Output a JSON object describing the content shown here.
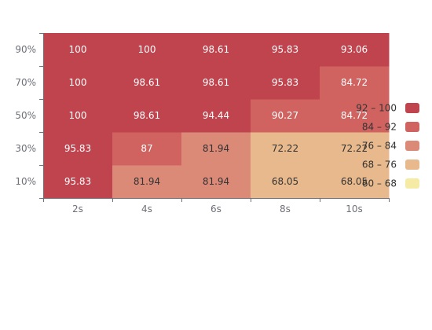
{
  "chart_data": {
    "type": "heatmap",
    "title": "",
    "xlabel": "",
    "ylabel": "",
    "x_categories": [
      "2s",
      "4s",
      "6s",
      "8s",
      "10s"
    ],
    "y_categories": [
      "10%",
      "30%",
      "50%",
      "70%",
      "90%"
    ],
    "values": [
      [
        95.83,
        81.94,
        81.94,
        68.05,
        68.05
      ],
      [
        95.83,
        87,
        81.94,
        72.22,
        72.22
      ],
      [
        100,
        98.61,
        94.44,
        90.27,
        84.72
      ],
      [
        100,
        98.61,
        98.61,
        95.83,
        84.72
      ],
      [
        100,
        100,
        98.61,
        95.83,
        93.06
      ]
    ],
    "legend": {
      "placement": "right",
      "pieces": [
        {
          "label": "92 – 100",
          "min": 92,
          "max": 100,
          "color": "#c0444e"
        },
        {
          "label": "84 – 92",
          "min": 84,
          "max": 92,
          "color": "#d0625f"
        },
        {
          "label": "76 – 84",
          "min": 76,
          "max": 84,
          "color": "#dc8a78"
        },
        {
          "label": "68 – 76",
          "min": 68,
          "max": 76,
          "color": "#e8b98c"
        },
        {
          "label": "60 – 68",
          "min": 60,
          "max": 68,
          "color": "#f6eba4"
        }
      ]
    },
    "grid": false
  }
}
